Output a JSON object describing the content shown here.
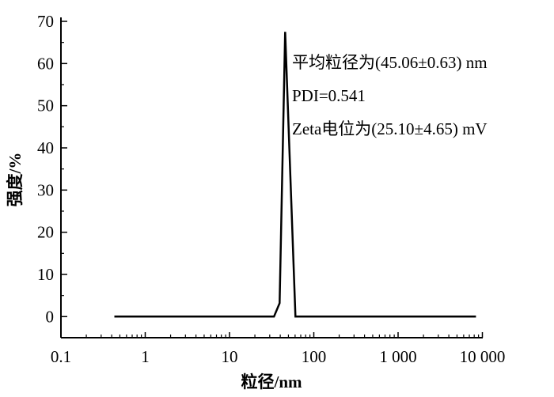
{
  "chart_data": {
    "type": "line",
    "title": "",
    "xlabel": "粒径/nm",
    "ylabel": "强度/%",
    "xscale": "log",
    "xlim": [
      0.1,
      10000
    ],
    "ylim": [
      -5,
      70
    ],
    "xticks": [
      0.1,
      1,
      10,
      100,
      1000,
      10000
    ],
    "xtick_labels": [
      "0.1",
      "1",
      "10",
      "100",
      "1 000",
      "10 000"
    ],
    "yticks": [
      0,
      10,
      20,
      30,
      40,
      50,
      60,
      70
    ],
    "ytick_labels": [
      "0",
      "10",
      "20",
      "30",
      "40",
      "50",
      "60",
      "70"
    ],
    "grid": false,
    "series": [
      {
        "x": [
          0.43,
          33.7,
          39.3,
          45.7,
          60.5,
          8400
        ],
        "y": [
          0,
          0,
          3.2,
          67.5,
          0,
          0
        ],
        "color": "#000000"
      }
    ],
    "annotations": [
      "平均粒径为(45.06±0.63) nm",
      "PDI=0.541",
      "Zeta电位为(25.10±4.65) mV"
    ]
  }
}
